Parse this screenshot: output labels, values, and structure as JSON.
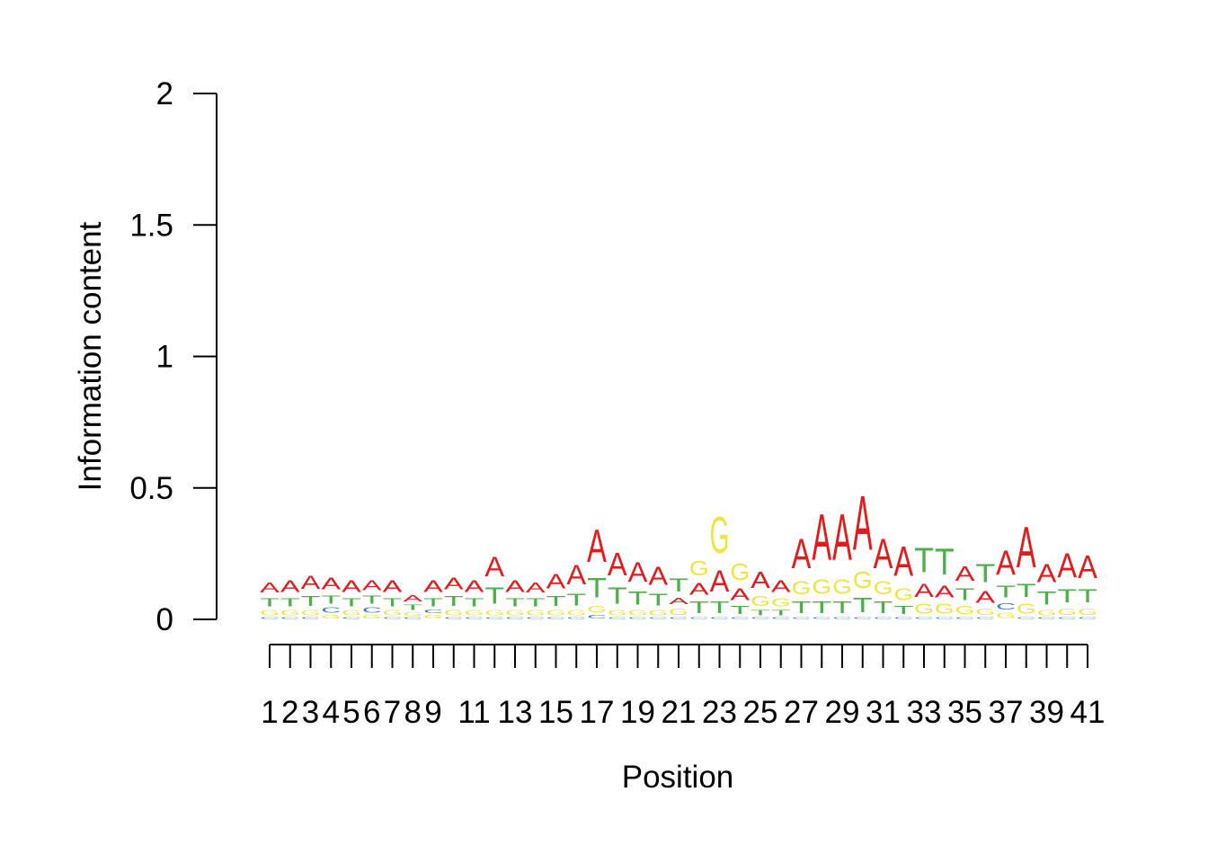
{
  "chart_data": {
    "type": "sequence-logo",
    "xlabel": "Position",
    "ylabel": "Information content",
    "ylim": [
      0,
      2
    ],
    "y_ticks": [
      0,
      0.5,
      1,
      1.5,
      2
    ],
    "y_tick_labels": [
      "0",
      "0.5",
      "1",
      "1.5",
      "2"
    ],
    "positions": [
      1,
      2,
      3,
      4,
      5,
      6,
      7,
      8,
      9,
      10,
      11,
      12,
      13,
      14,
      15,
      16,
      17,
      18,
      19,
      20,
      21,
      22,
      23,
      24,
      25,
      26,
      27,
      28,
      29,
      30,
      31,
      32,
      33,
      34,
      35,
      36,
      37,
      38,
      39,
      40,
      41
    ],
    "x_tick_labels": [
      "1",
      "2",
      "3",
      "4",
      "5",
      "6",
      "7",
      "8",
      "9",
      "",
      "11",
      "",
      "13",
      "",
      "15",
      "",
      "17",
      "",
      "19",
      "",
      "21",
      "",
      "23",
      "",
      "25",
      "",
      "27",
      "",
      "29",
      "",
      "31",
      "",
      "33",
      "",
      "35",
      "",
      "37",
      "",
      "39",
      "",
      "41"
    ],
    "letter_colors": {
      "A": "#e41a1c",
      "T": "#4daf4a",
      "G": "#f0e442",
      "C": "#377eb8"
    },
    "letter_heights_bottom_to_top": [
      [
        [
          "C",
          0.01
        ],
        [
          "G",
          0.03
        ],
        [
          "T",
          0.05
        ],
        [
          "A",
          0.06
        ]
      ],
      [
        [
          "C",
          0.01
        ],
        [
          "G",
          0.03
        ],
        [
          "T",
          0.05
        ],
        [
          "A",
          0.07
        ]
      ],
      [
        [
          "C",
          0.01
        ],
        [
          "G",
          0.03
        ],
        [
          "T",
          0.06
        ],
        [
          "A",
          0.08
        ]
      ],
      [
        [
          "G",
          0.02
        ],
        [
          "C",
          0.03
        ],
        [
          "T",
          0.05
        ],
        [
          "A",
          0.07
        ]
      ],
      [
        [
          "C",
          0.01
        ],
        [
          "G",
          0.03
        ],
        [
          "T",
          0.05
        ],
        [
          "A",
          0.07
        ]
      ],
      [
        [
          "G",
          0.02
        ],
        [
          "C",
          0.03
        ],
        [
          "T",
          0.05
        ],
        [
          "A",
          0.06
        ]
      ],
      [
        [
          "C",
          0.01
        ],
        [
          "G",
          0.03
        ],
        [
          "T",
          0.05
        ],
        [
          "A",
          0.07
        ]
      ],
      [
        [
          "C",
          0.01
        ],
        [
          "G",
          0.02
        ],
        [
          "T",
          0.03
        ],
        [
          "A",
          0.04
        ]
      ],
      [
        [
          "G",
          0.02
        ],
        [
          "C",
          0.02
        ],
        [
          "T",
          0.05
        ],
        [
          "A",
          0.07
        ]
      ],
      [
        [
          "C",
          0.01
        ],
        [
          "G",
          0.03
        ],
        [
          "T",
          0.06
        ],
        [
          "A",
          0.07
        ]
      ],
      [
        [
          "C",
          0.01
        ],
        [
          "G",
          0.03
        ],
        [
          "T",
          0.05
        ],
        [
          "A",
          0.07
        ]
      ],
      [
        [
          "C",
          0.01
        ],
        [
          "G",
          0.03
        ],
        [
          "T",
          0.1
        ],
        [
          "A",
          0.12
        ]
      ],
      [
        [
          "C",
          0.01
        ],
        [
          "G",
          0.03
        ],
        [
          "T",
          0.05
        ],
        [
          "A",
          0.07
        ]
      ],
      [
        [
          "C",
          0.01
        ],
        [
          "G",
          0.03
        ],
        [
          "T",
          0.05
        ],
        [
          "A",
          0.06
        ]
      ],
      [
        [
          "C",
          0.01
        ],
        [
          "G",
          0.03
        ],
        [
          "T",
          0.06
        ],
        [
          "A",
          0.09
        ]
      ],
      [
        [
          "C",
          0.01
        ],
        [
          "G",
          0.03
        ],
        [
          "T",
          0.07
        ],
        [
          "A",
          0.12
        ]
      ],
      [
        [
          "C",
          0.02
        ],
        [
          "G",
          0.04
        ],
        [
          "T",
          0.12
        ],
        [
          "A",
          0.2
        ]
      ],
      [
        [
          "C",
          0.01
        ],
        [
          "G",
          0.03
        ],
        [
          "T",
          0.1
        ],
        [
          "A",
          0.14
        ]
      ],
      [
        [
          "C",
          0.01
        ],
        [
          "G",
          0.03
        ],
        [
          "T",
          0.08
        ],
        [
          "A",
          0.12
        ]
      ],
      [
        [
          "C",
          0.01
        ],
        [
          "G",
          0.03
        ],
        [
          "T",
          0.07
        ],
        [
          "A",
          0.11
        ]
      ],
      [
        [
          "C",
          0.01
        ],
        [
          "G",
          0.04
        ],
        [
          "A",
          0.04
        ],
        [
          "T",
          0.08
        ]
      ],
      [
        [
          "C",
          0.01
        ],
        [
          "T",
          0.07
        ],
        [
          "A",
          0.07
        ],
        [
          "G",
          0.09
        ]
      ],
      [
        [
          "C",
          0.01
        ],
        [
          "T",
          0.07
        ],
        [
          "A",
          0.13
        ],
        [
          "G",
          0.22
        ]
      ],
      [
        [
          "C",
          0.01
        ],
        [
          "T",
          0.05
        ],
        [
          "A",
          0.07
        ],
        [
          "G",
          0.1
        ]
      ],
      [
        [
          "C",
          0.01
        ],
        [
          "T",
          0.03
        ],
        [
          "G",
          0.06
        ],
        [
          "A",
          0.1
        ]
      ],
      [
        [
          "C",
          0.01
        ],
        [
          "T",
          0.03
        ],
        [
          "G",
          0.05
        ],
        [
          "A",
          0.07
        ]
      ],
      [
        [
          "C",
          0.01
        ],
        [
          "T",
          0.07
        ],
        [
          "G",
          0.08
        ],
        [
          "A",
          0.18
        ]
      ],
      [
        [
          "C",
          0.01
        ],
        [
          "T",
          0.07
        ],
        [
          "G",
          0.09
        ],
        [
          "A",
          0.28
        ]
      ],
      [
        [
          "C",
          0.01
        ],
        [
          "T",
          0.07
        ],
        [
          "G",
          0.09
        ],
        [
          "A",
          0.28
        ]
      ],
      [
        [
          "C",
          0.01
        ],
        [
          "T",
          0.09
        ],
        [
          "G",
          0.1
        ],
        [
          "A",
          0.33
        ]
      ],
      [
        [
          "C",
          0.01
        ],
        [
          "T",
          0.07
        ],
        [
          "G",
          0.08
        ],
        [
          "A",
          0.18
        ]
      ],
      [
        [
          "C",
          0.01
        ],
        [
          "T",
          0.05
        ],
        [
          "G",
          0.07
        ],
        [
          "A",
          0.18
        ]
      ],
      [
        [
          "C",
          0.01
        ],
        [
          "G",
          0.06
        ],
        [
          "A",
          0.08
        ],
        [
          "T",
          0.15
        ]
      ],
      [
        [
          "C",
          0.01
        ],
        [
          "G",
          0.06
        ],
        [
          "A",
          0.07
        ],
        [
          "T",
          0.16
        ]
      ],
      [
        [
          "C",
          0.01
        ],
        [
          "G",
          0.05
        ],
        [
          "T",
          0.07
        ],
        [
          "A",
          0.09
        ]
      ],
      [
        [
          "C",
          0.01
        ],
        [
          "G",
          0.04
        ],
        [
          "A",
          0.07
        ],
        [
          "T",
          0.11
        ]
      ],
      [
        [
          "G",
          0.03
        ],
        [
          "C",
          0.04
        ],
        [
          "T",
          0.07
        ],
        [
          "A",
          0.15
        ]
      ],
      [
        [
          "C",
          0.01
        ],
        [
          "G",
          0.06
        ],
        [
          "T",
          0.08
        ],
        [
          "A",
          0.25
        ]
      ],
      [
        [
          "C",
          0.01
        ],
        [
          "G",
          0.03
        ],
        [
          "T",
          0.08
        ],
        [
          "A",
          0.11
        ]
      ],
      [
        [
          "C",
          0.01
        ],
        [
          "G",
          0.04
        ],
        [
          "T",
          0.08
        ],
        [
          "A",
          0.15
        ]
      ],
      [
        [
          "C",
          0.01
        ],
        [
          "G",
          0.04
        ],
        [
          "T",
          0.08
        ],
        [
          "A",
          0.14
        ]
      ]
    ]
  }
}
